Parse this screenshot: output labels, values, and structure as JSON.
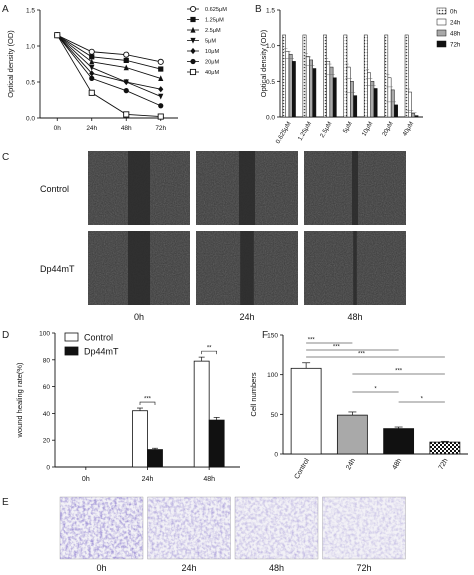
{
  "panel_labels": {
    "a": "A",
    "b": "B",
    "c": "C",
    "d": "D",
    "e": "E",
    "f": "F"
  },
  "colors": {
    "axis": "#111111",
    "micro_dark": "#2c2c2c",
    "stain": "#5a4aa8",
    "bar_white": "#ffffff",
    "bar_grey": "#a9a9a9",
    "bar_black": "#111111"
  },
  "chart_data": [
    {
      "id": "A",
      "type": "line",
      "title": "",
      "ylabel": "Optical density (OD)",
      "xlabel": "",
      "categories": [
        "0h",
        "24h",
        "48h",
        "72h"
      ],
      "yticks": [
        "0.0",
        "0.5",
        "1.0",
        "1.5"
      ],
      "ylim": [
        0,
        1.5
      ],
      "legend_position": "top-right",
      "series": [
        {
          "name": "0.625μM",
          "marker": "circle-open",
          "values": [
            1.15,
            0.92,
            0.88,
            0.78
          ]
        },
        {
          "name": "1.25μM",
          "marker": "square",
          "values": [
            1.15,
            0.85,
            0.8,
            0.68
          ]
        },
        {
          "name": "2.5μM",
          "marker": "triangle-up",
          "values": [
            1.15,
            0.78,
            0.7,
            0.55
          ]
        },
        {
          "name": "5μM",
          "marker": "triangle-down",
          "values": [
            1.15,
            0.7,
            0.5,
            0.3
          ]
        },
        {
          "name": "10μM",
          "marker": "diamond",
          "values": [
            1.15,
            0.62,
            0.5,
            0.4
          ]
        },
        {
          "name": "20μM",
          "marker": "circle",
          "values": [
            1.15,
            0.55,
            0.38,
            0.17
          ]
        },
        {
          "name": "40μM",
          "marker": "square-open",
          "values": [
            1.15,
            0.35,
            0.05,
            0.02
          ]
        }
      ]
    },
    {
      "id": "B",
      "type": "bar",
      "ylabel": "Optical density (OD)",
      "categories": [
        "0.625μM",
        "1.25μM",
        "2.5μM",
        "5μM",
        "10μM",
        "20μM",
        "40μM"
      ],
      "yticks": [
        "0.0",
        "0.5",
        "1.0",
        "1.5"
      ],
      "ylim": [
        0,
        1.5
      ],
      "legend_position": "right",
      "series": [
        {
          "name": "0h",
          "pattern": "dots",
          "values": [
            1.15,
            1.15,
            1.15,
            1.15,
            1.15,
            1.15,
            1.15
          ]
        },
        {
          "name": "24h",
          "pattern": "white",
          "values": [
            0.92,
            0.85,
            0.78,
            0.7,
            0.62,
            0.55,
            0.35
          ]
        },
        {
          "name": "48h",
          "pattern": "grey",
          "values": [
            0.88,
            0.8,
            0.7,
            0.5,
            0.5,
            0.38,
            0.05
          ]
        },
        {
          "name": "72h",
          "pattern": "black",
          "values": [
            0.78,
            0.68,
            0.55,
            0.3,
            0.4,
            0.17,
            0.02
          ]
        }
      ]
    },
    {
      "id": "D",
      "type": "bar",
      "ylabel": "wound healing rate(%)",
      "categories": [
        "0h",
        "24h",
        "48h"
      ],
      "yticks": [
        "0",
        "20",
        "40",
        "60",
        "80",
        "100"
      ],
      "ylim": [
        0,
        100
      ],
      "legend_position": "top-left",
      "series": [
        {
          "name": "Control",
          "fill": "white",
          "values": [
            0,
            42,
            79
          ],
          "errors": [
            0,
            2,
            3
          ]
        },
        {
          "name": "Dp44mT",
          "fill": "black",
          "values": [
            0,
            13,
            35
          ],
          "errors": [
            0,
            1,
            2
          ]
        }
      ],
      "significance": [
        {
          "category": "24h",
          "label": "***"
        },
        {
          "category": "48h",
          "label": "**"
        }
      ]
    },
    {
      "id": "F",
      "type": "bar",
      "ylabel": "Cell numbers",
      "categories": [
        "Control",
        "24h",
        "48h",
        "72h"
      ],
      "yticks": [
        "0",
        "50",
        "100",
        "150"
      ],
      "ylim": [
        0,
        150
      ],
      "values": [
        108,
        49,
        32,
        15
      ],
      "errors": [
        7,
        4,
        2,
        1
      ],
      "fills": [
        "white",
        "grey",
        "black",
        "checker"
      ],
      "significance": [
        {
          "from": "Control",
          "to": "24h",
          "label": "***"
        },
        {
          "from": "Control",
          "to": "48h",
          "label": "***"
        },
        {
          "from": "Control",
          "to": "72h",
          "label": "***"
        },
        {
          "from": "24h",
          "to": "48h",
          "label": "*"
        },
        {
          "from": "24h",
          "to": "72h",
          "label": "***"
        },
        {
          "from": "48h",
          "to": "72h",
          "label": "*"
        }
      ]
    }
  ],
  "panel_c": {
    "rows": [
      "Control",
      "Dp44mT"
    ],
    "cols": [
      "0h",
      "24h",
      "48h"
    ]
  },
  "panel_e": {
    "cols": [
      "0h",
      "24h",
      "48h",
      "72h"
    ]
  }
}
